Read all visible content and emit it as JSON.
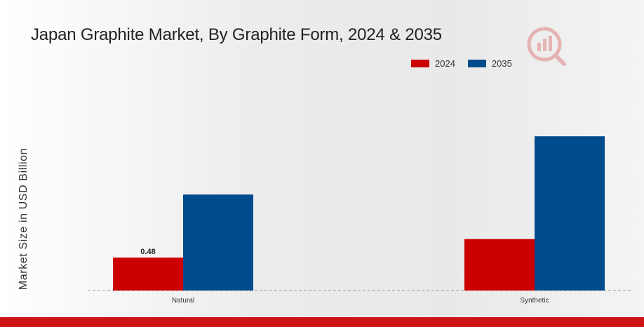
{
  "chart_data": {
    "type": "bar",
    "title": "Japan Graphite Market, By Graphite Form, 2024 & 2035",
    "ylabel": "Market Size in USD Billion",
    "xlabel": "",
    "categories": [
      "Natural",
      "Synthetic"
    ],
    "series": [
      {
        "name": "2024",
        "color": "#cc0000",
        "values": [
          0.48,
          0.75
        ]
      },
      {
        "name": "2035",
        "color": "#004b8d",
        "values": [
          1.4,
          2.25
        ]
      }
    ],
    "data_labels": [
      {
        "series": 0,
        "category": 0,
        "text": "0.48"
      }
    ],
    "ylim": [
      0,
      2.6
    ],
    "grid": false,
    "legend_position": "top-right",
    "baseline_style": "dashed"
  },
  "brand": {
    "logo_icon": "market-research-logo-icon",
    "accent": "#cc1414"
  }
}
